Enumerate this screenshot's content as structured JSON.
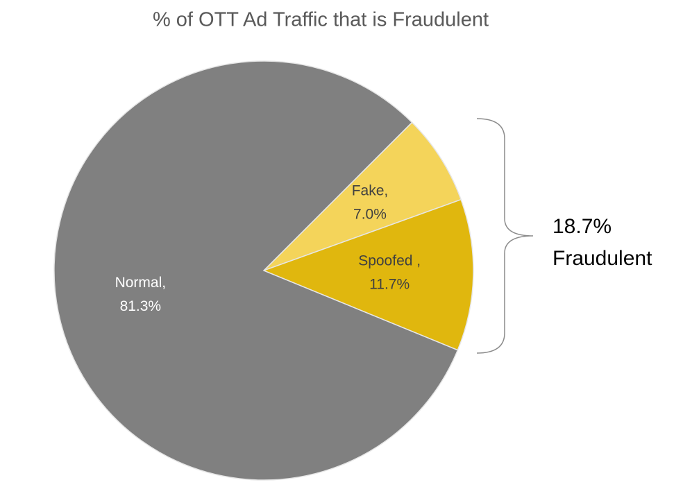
{
  "chart_data": {
    "type": "pie",
    "title": "% of OTT Ad Traffic that is Fraudulent",
    "categories": [
      "Fake,",
      "Spoofed ,",
      "Normal,"
    ],
    "values": [
      7.0,
      11.7,
      81.3
    ],
    "value_labels": [
      "7.0%",
      "11.7%",
      "81.3%"
    ],
    "colors": [
      "#f4d45a",
      "#e0b70e",
      "#808080"
    ],
    "label_colors": [
      "#404040",
      "#404040",
      "#ffffff"
    ],
    "start_angle": 45,
    "annotation": [
      "18.7%",
      "Fraudulent"
    ]
  }
}
